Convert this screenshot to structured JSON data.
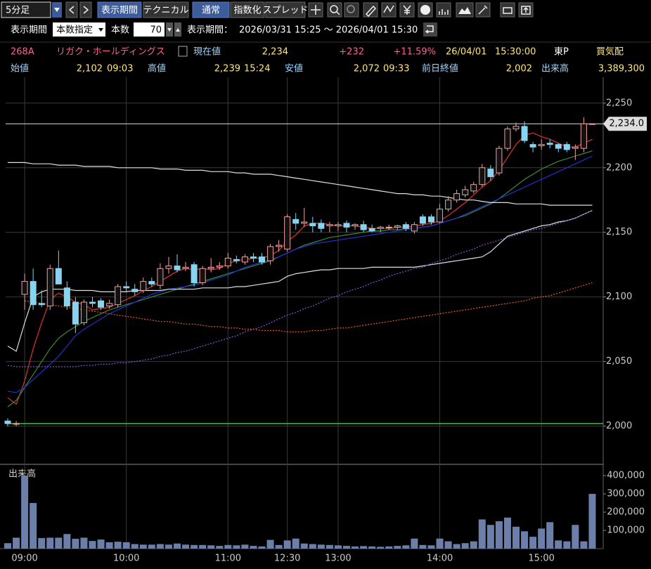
{
  "toolbar": {
    "timeframe": "5分足",
    "buttons": [
      "表示期間",
      "テクニカル",
      "通常",
      "指数化",
      "スプレッド"
    ]
  },
  "settings": {
    "period_label": "表示期間",
    "period_mode": "本数指定",
    "count_label": "本数",
    "count": 70,
    "range_label": "表示期間：",
    "range": "2026/03/31 15:25 ～ 2026/04/01 15:30"
  },
  "quote": {
    "code": "268A",
    "name": "リガク・ホールディングス",
    "price_label": "現在値",
    "price": "2,234",
    "change": "+232",
    "change_pct": "+11.59%",
    "date": "26/04/01",
    "time": "15:30:00",
    "market": "東P",
    "quote_type": "買気配"
  },
  "stats": [
    {
      "label": "始値",
      "value": "2,102",
      "time": "09:03"
    },
    {
      "label": "高値",
      "value": "2,239",
      "time": "15:24"
    },
    {
      "label": "安値",
      "value": "2,072",
      "time": "09:33"
    },
    {
      "label": "前日終値",
      "value": "2,002"
    },
    {
      "label": "出来高",
      "value": "3,389,300"
    }
  ],
  "chart_data": [
    {
      "type": "candlestick",
      "up_color": "#f0a0a0",
      "down_color": "#86d4f2",
      "grid": true,
      "categories": [
        null,
        null,
        "09:00",
        null,
        null,
        null,
        null,
        null,
        null,
        null,
        null,
        null,
        null,
        null,
        "10:00",
        null,
        null,
        null,
        null,
        null,
        null,
        null,
        null,
        null,
        null,
        null,
        "11:00",
        null,
        null,
        null,
        null,
        null,
        null,
        "12:30",
        null,
        null,
        null,
        null,
        null,
        "13:00",
        null,
        null,
        null,
        null,
        null,
        null,
        null,
        null,
        null,
        null,
        null,
        "14:00",
        null,
        null,
        null,
        null,
        null,
        null,
        null,
        null,
        null,
        null,
        null,
        "15:00",
        null,
        null,
        null,
        null,
        null,
        null
      ],
      "open": [
        2004,
        2002,
        2102,
        2112,
        2095,
        2093,
        2122,
        2107,
        2096,
        2080,
        2096,
        2097,
        2093,
        2094,
        2108,
        2106,
        2105,
        2112,
        2109,
        2122,
        2124,
        2122,
        2125,
        2111,
        2122,
        2123,
        2124,
        2129,
        2127,
        2131,
        2131,
        2128,
        2139,
        2137,
        2160,
        2157,
        2157,
        2157,
        2155,
        2155,
        2157,
        2155,
        2156,
        2153,
        2153,
        2154,
        2154,
        2156,
        2151,
        2162,
        2162,
        2158,
        2168,
        2175,
        2179,
        2182,
        2187,
        2199,
        2196,
        2215,
        2230,
        2232,
        2218,
        2217,
        2219,
        2218,
        2218,
        2215,
        2215,
        2234
      ],
      "high": [
        2006,
        2004,
        2118,
        2122,
        2105,
        2125,
        2136,
        2112,
        2100,
        2098,
        2100,
        2099,
        2098,
        2110,
        2112,
        2110,
        2115,
        2115,
        2126,
        2131,
        2133,
        2127,
        2127,
        2124,
        2130,
        2127,
        2134,
        2132,
        2133,
        2134,
        2134,
        2141,
        2144,
        2164,
        2165,
        2169,
        2162,
        2160,
        2158,
        2158,
        2159,
        2157,
        2159,
        2156,
        2155,
        2156,
        2156,
        2158,
        2158,
        2164,
        2164,
        2172,
        2178,
        2183,
        2186,
        2189,
        2203,
        2202,
        2217,
        2232,
        2235,
        2236,
        2220,
        2222,
        2222,
        2219,
        2220,
        2218,
        2239,
        2234
      ],
      "low": [
        2000,
        2000,
        2090,
        2090,
        2092,
        2090,
        2110,
        2090,
        2072,
        2078,
        2092,
        2090,
        2091,
        2092,
        2104,
        2101,
        2103,
        2108,
        2106,
        2118,
        2119,
        2120,
        2108,
        2109,
        2119,
        2121,
        2122,
        2126,
        2125,
        2127,
        2125,
        2125,
        2135,
        2135,
        2152,
        2154,
        2150,
        2150,
        2150,
        2151,
        2150,
        2152,
        2150,
        2150,
        2150,
        2152,
        2152,
        2151,
        2149,
        2155,
        2156,
        2157,
        2166,
        2173,
        2177,
        2180,
        2185,
        2190,
        2194,
        2213,
        2228,
        2219,
        2212,
        2214,
        2215,
        2212,
        2212,
        2206,
        2212,
        2234
      ],
      "close": [
        2002,
        2002,
        2112,
        2094,
        2094,
        2122,
        2110,
        2093,
        2079,
        2096,
        2095,
        2092,
        2095,
        2108,
        2107,
        2104,
        2112,
        2110,
        2122,
        2124,
        2121,
        2123,
        2111,
        2122,
        2123,
        2124,
        2130,
        2128,
        2131,
        2130,
        2127,
        2139,
        2140,
        2162,
        2157,
        2158,
        2155,
        2153,
        2156,
        2156,
        2154,
        2156,
        2152,
        2151,
        2154,
        2154,
        2155,
        2153,
        2156,
        2157,
        2158,
        2168,
        2175,
        2180,
        2183,
        2187,
        2200,
        2193,
        2215,
        2230,
        2232,
        2221,
        2216,
        2218,
        2218,
        2215,
        2214,
        2216,
        2234,
        2234
      ],
      "overlays": [
        {
          "color": "#e03030",
          "style": "solid",
          "values": [
            2022,
            2017,
            2035,
            2060,
            2080,
            2098,
            2103,
            2100,
            2096,
            2094,
            2090,
            2091,
            2092,
            2095,
            2098,
            2101,
            2105,
            2108,
            2112,
            2116,
            2120,
            2122,
            2121,
            2122,
            2121,
            2122,
            2126,
            2128,
            2129,
            2130,
            2130,
            2132,
            2136,
            2143,
            2148,
            2155,
            2157,
            2157,
            2156,
            2155,
            2155,
            2155,
            2154,
            2153,
            2153,
            2153,
            2154,
            2154,
            2155,
            2156,
            2157,
            2159,
            2163,
            2168,
            2173,
            2179,
            2185,
            2190,
            2198,
            2208,
            2218,
            2225,
            2227,
            2224,
            2222,
            2219,
            2216,
            2216,
            2219,
            2222
          ]
        },
        {
          "color": "#3a8a3a",
          "style": "solid",
          "values": [
            2015,
            2020,
            2030,
            2040,
            2050,
            2060,
            2068,
            2073,
            2077,
            2081,
            2084,
            2087,
            2090,
            2092,
            2094,
            2096,
            2098,
            2100,
            2102,
            2104,
            2106,
            2108,
            2110,
            2112,
            2114,
            2116,
            2118,
            2120,
            2122,
            2124,
            2126,
            2128,
            2131,
            2134,
            2137,
            2140,
            2142,
            2144,
            2146,
            2147,
            2148,
            2149,
            2150,
            2151,
            2151,
            2152,
            2152,
            2153,
            2153,
            2154,
            2155,
            2157,
            2159,
            2161,
            2163,
            2166,
            2169,
            2172,
            2176,
            2181,
            2186,
            2191,
            2195,
            2199,
            2202,
            2205,
            2207,
            2209,
            2211,
            2213
          ]
        },
        {
          "color": "#2030d0",
          "style": "solid",
          "values": [
            2027,
            2026,
            2030,
            2036,
            2042,
            2048,
            2054,
            2062,
            2070,
            2075,
            2079,
            2083,
            2087,
            2090,
            2093,
            2096,
            2099,
            2102,
            2104,
            2106,
            2107,
            2108,
            2109,
            2111,
            2113,
            2115,
            2117,
            2120,
            2123,
            2125,
            2127,
            2129,
            2131,
            2134,
            2137,
            2139,
            2141,
            2142,
            2143,
            2144,
            2145,
            2146,
            2147,
            2148,
            2149,
            2150,
            2151,
            2152,
            2153,
            2154,
            2155,
            2157,
            2159,
            2161,
            2164,
            2167,
            2170,
            2173,
            2176,
            2179,
            2182,
            2185,
            2188,
            2191,
            2194,
            2197,
            2200,
            2203,
            2206,
            2209
          ]
        },
        {
          "color": "#e0e0e0",
          "style": "solid",
          "values": [
            2204,
            2204,
            2204,
            2203,
            2203,
            2203,
            2202,
            2202,
            2202,
            2201,
            2201,
            2201,
            2201,
            2200,
            2200,
            2200,
            2200,
            2200,
            2199,
            2199,
            2199,
            2198,
            2198,
            2198,
            2197,
            2197,
            2197,
            2196,
            2196,
            2195,
            2195,
            2195,
            2194,
            2193,
            2192,
            2191,
            2190,
            2189,
            2188,
            2187,
            2186,
            2185,
            2184,
            2183,
            2182,
            2181,
            2180,
            2180,
            2179,
            2179,
            2178,
            2178,
            2177,
            2176,
            2175,
            2175,
            2174,
            2173,
            2173,
            2173,
            2172,
            2172,
            2172,
            2172,
            2171,
            2171,
            2171,
            2171,
            2171,
            2171
          ]
        },
        {
          "color": "#e0e0e0",
          "style": "solid",
          "values": [
            2062,
            2058,
            2080,
            2100,
            2104,
            2106,
            2106,
            2106,
            2105,
            2105,
            2105,
            2104,
            2104,
            2104,
            2104,
            2105,
            2105,
            2105,
            2105,
            2106,
            2106,
            2106,
            2106,
            2107,
            2107,
            2107,
            2107,
            2108,
            2108,
            2109,
            2110,
            2111,
            2112,
            2116,
            2118,
            2119,
            2120,
            2121,
            2121,
            2122,
            2122,
            2122,
            2122,
            2123,
            2123,
            2123,
            2123,
            2123,
            2123,
            2124,
            2125,
            2126,
            2127,
            2128,
            2129,
            2130,
            2131,
            2135,
            2141,
            2147,
            2149,
            2151,
            2153,
            2155,
            2156,
            2158,
            2159,
            2161,
            2164,
            2167
          ]
        },
        {
          "color": "#9050d0",
          "style": "dotted",
          "values": [
            2047,
            2046,
            2046,
            2046,
            2046,
            2046,
            2046,
            2046,
            2046,
            2047,
            2047,
            2048,
            2048,
            2049,
            2049,
            2050,
            2051,
            2052,
            2054,
            2055,
            2057,
            2058,
            2060,
            2062,
            2064,
            2066,
            2068,
            2070,
            2073,
            2075,
            2077,
            2080,
            2083,
            2086,
            2088,
            2091,
            2093,
            2096,
            2099,
            2101,
            2104,
            2106,
            2108,
            2111,
            2113,
            2116,
            2118,
            2120,
            2122,
            2123,
            2126,
            2128,
            2130,
            2133,
            2135,
            2137,
            2140,
            2142,
            2144,
            2146,
            2148,
            2150,
            2152,
            2153,
            2155,
            2157,
            2159,
            2161,
            2164,
            2167
          ]
        },
        {
          "color": "#e06020",
          "style": "dotted",
          "values": [
            null,
            null,
            2097,
            2096,
            2095,
            2094,
            2093,
            2092,
            2091,
            2090,
            2089,
            2088,
            2087,
            2086,
            2085,
            2084,
            2083,
            2082,
            2081,
            2081,
            2080,
            2079,
            2079,
            2078,
            2077,
            2077,
            2076,
            2076,
            2075,
            2075,
            2074,
            2074,
            2074,
            2073,
            2073,
            2073,
            2074,
            2074,
            2075,
            2076,
            2076,
            2077,
            2078,
            2079,
            2080,
            2081,
            2082,
            2083,
            2084,
            2085,
            2086,
            2087,
            2088,
            2089,
            2090,
            2091,
            2092,
            2093,
            2094,
            2095,
            2096,
            2097,
            2099,
            2100,
            2101,
            2103,
            2105,
            2107,
            2109,
            2111
          ]
        }
      ],
      "prev_close": 2002,
      "prev_close_color": "#3cc23c",
      "current_price": {
        "value": 2234,
        "label": "2,234.0"
      },
      "ylim": [
        1971,
        2270
      ],
      "yticks": [
        {
          "value": 2000,
          "label": "2,000"
        },
        {
          "value": 2050,
          "label": "2,050"
        },
        {
          "value": 2100,
          "label": "2,100"
        },
        {
          "value": 2150,
          "label": "2,150"
        },
        {
          "value": 2200,
          "label": "2,200"
        },
        {
          "value": 2250,
          "label": "2,250"
        }
      ]
    },
    {
      "type": "bar",
      "title": "出来高",
      "color": "#6b7fa8",
      "values": [
        30000,
        60000,
        400000,
        250000,
        58000,
        60000,
        60000,
        80000,
        54000,
        60000,
        42000,
        50000,
        35000,
        38000,
        35000,
        25000,
        22000,
        22000,
        25000,
        22000,
        28000,
        22000,
        20000,
        20000,
        18000,
        15000,
        20000,
        18000,
        22000,
        15000,
        12000,
        48000,
        20000,
        45000,
        55000,
        28000,
        25000,
        22000,
        20000,
        18000,
        15000,
        12000,
        14000,
        12000,
        10000,
        12000,
        15000,
        18000,
        55000,
        20000,
        18000,
        55000,
        40000,
        25000,
        30000,
        40000,
        160000,
        130000,
        150000,
        170000,
        120000,
        95000,
        65000,
        110000,
        145000,
        45000,
        40000,
        130000,
        40000,
        300000
      ],
      "ylim": [
        0,
        458000
      ],
      "yticks": [
        {
          "value": 100000,
          "label": "100,000"
        },
        {
          "value": 200000,
          "label": "200,000"
        },
        {
          "value": 300000,
          "label": "300,000"
        },
        {
          "value": 400000,
          "label": "400,000"
        }
      ]
    }
  ]
}
